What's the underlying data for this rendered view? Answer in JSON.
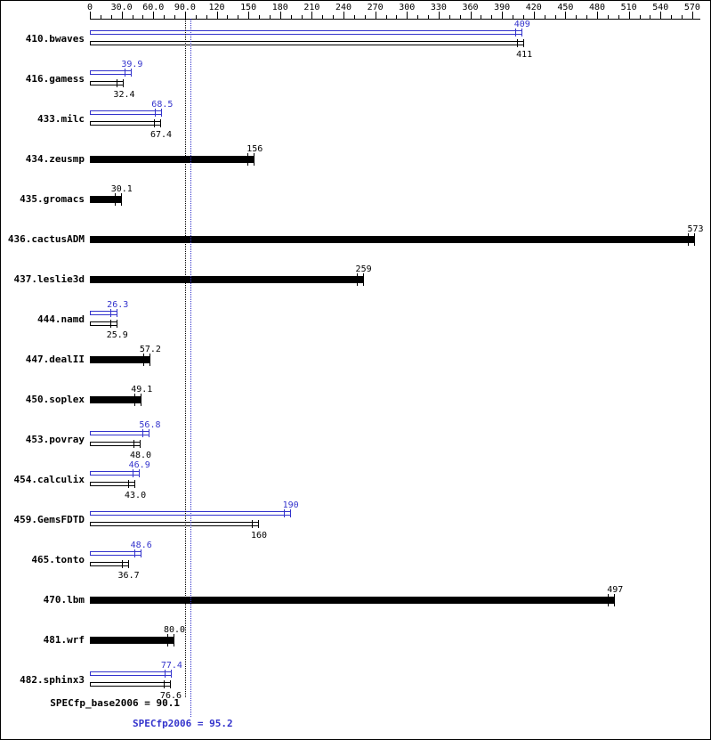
{
  "colors": {
    "base": "#000000",
    "peak": "#3333cc",
    "background": "#ffffff"
  },
  "chart_data": {
    "type": "bar",
    "orientation": "horizontal",
    "title": "",
    "xlabel": "",
    "ylabel": "",
    "xlim": [
      0,
      578
    ],
    "x_major_tick": 30,
    "x_minor_tick": 10,
    "grid": false,
    "legend": "none",
    "tick_labels": [
      "0",
      "30.0",
      "60.0",
      "90.0",
      "120",
      "150",
      "180",
      "210",
      "240",
      "270",
      "300",
      "330",
      "360",
      "390",
      "420",
      "450",
      "480",
      "510",
      "540",
      "570"
    ],
    "benchmarks": [
      {
        "name": "410.bwaves",
        "peak": 409,
        "base": 411,
        "peak_label": "409",
        "base_label": "411"
      },
      {
        "name": "416.gamess",
        "peak": 39.9,
        "base": 32.4,
        "peak_label": "39.9",
        "base_label": "32.4"
      },
      {
        "name": "433.milc",
        "peak": 68.5,
        "base": 67.4,
        "peak_label": "68.5",
        "base_label": "67.4"
      },
      {
        "name": "434.zeusmp",
        "base": 156,
        "base_label": "156"
      },
      {
        "name": "435.gromacs",
        "base": 30.1,
        "base_label": "30.1"
      },
      {
        "name": "436.cactusADM",
        "base": 573,
        "base_label": "573"
      },
      {
        "name": "437.leslie3d",
        "base": 259,
        "base_label": "259"
      },
      {
        "name": "444.namd",
        "peak": 26.3,
        "base": 25.9,
        "peak_label": "26.3",
        "base_label": "25.9"
      },
      {
        "name": "447.dealII",
        "base": 57.2,
        "base_label": "57.2"
      },
      {
        "name": "450.soplex",
        "base": 49.1,
        "base_label": "49.1"
      },
      {
        "name": "453.povray",
        "peak": 56.8,
        "base": 48.0,
        "peak_label": "56.8",
        "base_label": "48.0"
      },
      {
        "name": "454.calculix",
        "peak": 46.9,
        "base": 43.0,
        "peak_label": "46.9",
        "base_label": "43.0"
      },
      {
        "name": "459.GemsFDTD",
        "peak": 190,
        "base": 160,
        "peak_label": "190",
        "base_label": "160"
      },
      {
        "name": "465.tonto",
        "peak": 48.6,
        "base": 36.7,
        "peak_label": "48.6",
        "base_label": "36.7"
      },
      {
        "name": "470.lbm",
        "base": 497,
        "base_label": "497"
      },
      {
        "name": "481.wrf",
        "base": 80.0,
        "base_label": "80.0"
      },
      {
        "name": "482.sphinx3",
        "peak": 77.4,
        "base": 76.6,
        "peak_label": "77.4",
        "base_label": "76.6"
      }
    ],
    "reference_lines": [
      {
        "name": "base",
        "label": "SPECfp_base2006 = 90.1",
        "value": 90.1,
        "color": "#000000",
        "style": "dotted"
      },
      {
        "name": "peak",
        "label": "SPECfp2006 = 95.2",
        "value": 95.2,
        "color": "#3333cc",
        "style": "dotted"
      }
    ]
  }
}
